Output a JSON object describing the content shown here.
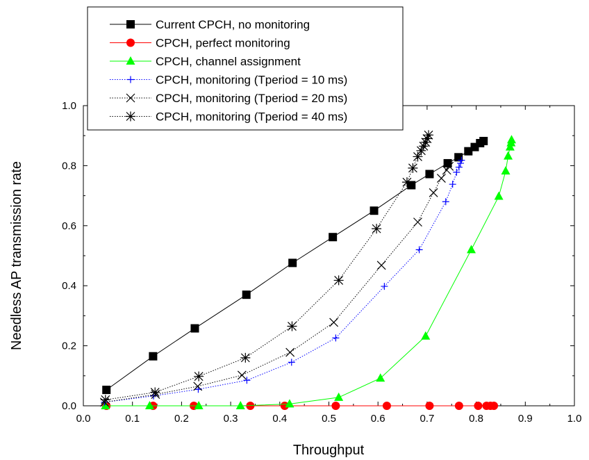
{
  "chart_data": {
    "type": "line",
    "xlabel": "Throughput",
    "ylabel": "Needless AP transmission rate",
    "xlim": [
      0.0,
      1.0
    ],
    "ylim": [
      0.0,
      1.0
    ],
    "xticks": [
      "0.0",
      "0.1",
      "0.2",
      "0.3",
      "0.4",
      "0.5",
      "0.6",
      "0.7",
      "0.8",
      "0.9",
      "1.0"
    ],
    "yticks": [
      "0.0",
      "0.2",
      "0.4",
      "0.6",
      "0.8",
      "1.0"
    ],
    "grid": false,
    "legend_position": "top-left",
    "series": [
      {
        "name": "Current CPCH, no monitoring",
        "color": "#000000",
        "marker": "square",
        "line": "solid",
        "x": [
          0.047,
          0.142,
          0.227,
          0.332,
          0.426,
          0.508,
          0.592,
          0.668,
          0.705,
          0.742,
          0.764,
          0.784,
          0.797,
          0.808,
          0.815
        ],
        "y": [
          0.053,
          0.165,
          0.258,
          0.37,
          0.476,
          0.562,
          0.65,
          0.735,
          0.772,
          0.808,
          0.828,
          0.848,
          0.862,
          0.875,
          0.882
        ]
      },
      {
        "name": "CPCH, perfect monitoring",
        "color": "#ff0000",
        "marker": "circle",
        "line": "solid",
        "x": [
          0.047,
          0.142,
          0.225,
          0.34,
          0.41,
          0.514,
          0.618,
          0.705,
          0.765,
          0.804,
          0.821,
          0.829,
          0.836
        ],
        "y": [
          0,
          0,
          0,
          0,
          0,
          0,
          0,
          0,
          0,
          0,
          0,
          0,
          0
        ]
      },
      {
        "name": "CPCH, channel assignment",
        "color": "#00ff00",
        "marker": "triangle",
        "line": "solid",
        "x": [
          0.045,
          0.135,
          0.235,
          0.32,
          0.42,
          0.52,
          0.605,
          0.697,
          0.79,
          0.846,
          0.86,
          0.865,
          0.869,
          0.871,
          0.872
        ],
        "y": [
          0,
          0,
          0,
          0,
          0.006,
          0.028,
          0.092,
          0.232,
          0.52,
          0.698,
          0.782,
          0.832,
          0.862,
          0.876,
          0.886
        ]
      },
      {
        "name": "CPCH, monitoring (Tperiod = 10 ms)",
        "color": "#0000ff",
        "marker": "plus",
        "line": "dotted",
        "x": [
          0.043,
          0.143,
          0.234,
          0.333,
          0.424,
          0.514,
          0.613,
          0.684,
          0.738,
          0.752,
          0.76,
          0.765,
          0.768,
          0.77
        ],
        "y": [
          0.012,
          0.033,
          0.055,
          0.085,
          0.145,
          0.226,
          0.398,
          0.52,
          0.68,
          0.738,
          0.778,
          0.795,
          0.808,
          0.818
        ]
      },
      {
        "name": "CPCH, monitoring (Tperiod = 20 ms)",
        "color": "#000000",
        "marker": "x",
        "line": "dotted",
        "x": [
          0.043,
          0.147,
          0.233,
          0.323,
          0.421,
          0.51,
          0.607,
          0.681,
          0.713,
          0.729,
          0.74,
          0.745
        ],
        "y": [
          0.012,
          0.038,
          0.065,
          0.102,
          0.178,
          0.278,
          0.468,
          0.612,
          0.71,
          0.758,
          0.785,
          0.798
        ]
      },
      {
        "name": "CPCH, monitoring (Tperiod = 40 ms)",
        "color": "#000000",
        "marker": "asterisk",
        "line": "dotted",
        "x": [
          0.045,
          0.146,
          0.235,
          0.33,
          0.425,
          0.52,
          0.597,
          0.659,
          0.671,
          0.681,
          0.688,
          0.693,
          0.697,
          0.7,
          0.703
        ],
        "y": [
          0.02,
          0.045,
          0.098,
          0.16,
          0.265,
          0.418,
          0.59,
          0.745,
          0.792,
          0.83,
          0.85,
          0.865,
          0.878,
          0.89,
          0.902
        ]
      }
    ]
  }
}
